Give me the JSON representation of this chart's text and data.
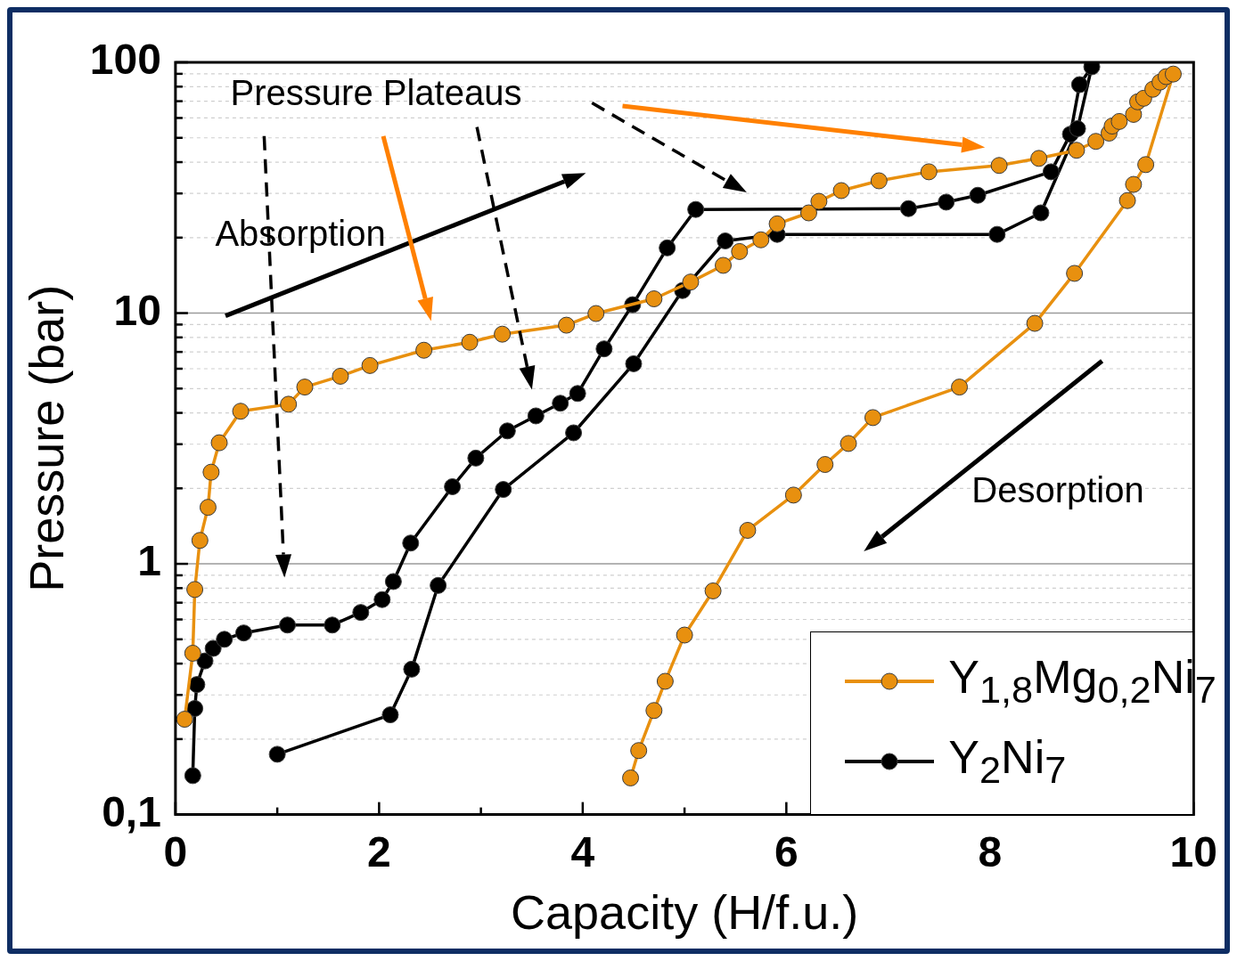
{
  "chart_data": {
    "type": "line",
    "xlabel": "Capacity (H/f.u.)",
    "ylabel": "Pressure (bar)",
    "xlim": [
      0,
      10
    ],
    "xticks": [
      0,
      {
        "value": 1,
        "label": null
      },
      2,
      {
        "value": 3,
        "label": null
      },
      4,
      {
        "value": 5,
        "label": null
      },
      6,
      {
        "value": 7,
        "label": null
      },
      8,
      {
        "value": 9,
        "label": null
      },
      10
    ],
    "ylim": [
      0.1,
      100
    ],
    "yticks": [
      {
        "value": 0.1,
        "label": "0,1"
      },
      {
        "value": 0.2,
        "label": null
      },
      {
        "value": 0.3,
        "label": null
      },
      {
        "value": 0.4,
        "label": null
      },
      {
        "value": 0.5,
        "label": null
      },
      {
        "value": 0.6,
        "label": null
      },
      {
        "value": 0.7,
        "label": null
      },
      {
        "value": 0.8,
        "label": null
      },
      {
        "value": 0.9,
        "label": null
      },
      1,
      {
        "value": 2,
        "label": null
      },
      {
        "value": 3,
        "label": null
      },
      {
        "value": 4,
        "label": null
      },
      {
        "value": 5,
        "label": null
      },
      {
        "value": 6,
        "label": null
      },
      {
        "value": 7,
        "label": null
      },
      {
        "value": 8,
        "label": null
      },
      {
        "value": 9,
        "label": null
      },
      10,
      {
        "value": 20,
        "label": null
      },
      {
        "value": 30,
        "label": null
      },
      {
        "value": 40,
        "label": null
      },
      {
        "value": 50,
        "label": null
      },
      {
        "value": 60,
        "label": null
      },
      {
        "value": 70,
        "label": null
      },
      {
        "value": 80,
        "label": null
      },
      {
        "value": 90,
        "label": null
      },
      100
    ],
    "log": "y",
    "grid": "y",
    "legend": "bottom right",
    "marker": "circle",
    "line_style": "solid",
    "annotations": [
      "Pressure Plateaus",
      "Absorption",
      "Desorption"
    ],
    "series": [
      {
        "name": "Y$_{1,8}$Mg$_{0,2}$Ni$_{7}$",
        "color": "#e8900f",
        "x": [
          0.09,
          0.17,
          0.19,
          0.24,
          0.32,
          0.35,
          0.43,
          0.64,
          1.11,
          1.27,
          1.62,
          1.91,
          2.44,
          2.89,
          3.21,
          3.84,
          4.13,
          4.7,
          5.06,
          5.38,
          5.54,
          5.75,
          5.91,
          6.22,
          6.32,
          6.54,
          6.91,
          7.4,
          8.09,
          8.48,
          8.85,
          9.04,
          9.17,
          9.2,
          9.27,
          9.41,
          9.45,
          9.51,
          9.6,
          9.67,
          9.73,
          9.8,
          9.53,
          9.41,
          9.35,
          8.83,
          8.44,
          7.7,
          6.85,
          6.61,
          6.38,
          6.07,
          5.62,
          5.28,
          5.0,
          4.81,
          4.7,
          4.55,
          4.47
        ],
        "values": [
          0.24,
          0.44,
          0.79,
          1.24,
          1.68,
          2.32,
          3.04,
          4.06,
          4.33,
          5.07,
          5.6,
          6.18,
          7.11,
          7.65,
          8.24,
          8.95,
          9.96,
          11.4,
          13.3,
          15.5,
          17.6,
          19.6,
          22.7,
          25.1,
          27.9,
          30.8,
          33.7,
          36.6,
          38.8,
          41.4,
          44.6,
          48.4,
          52.2,
          55.7,
          58.1,
          62,
          69.6,
          71.9,
          78.1,
          83.4,
          87.7,
          89.8,
          39.1,
          32.6,
          28.1,
          14.4,
          9.1,
          5.07,
          3.83,
          3.02,
          2.49,
          1.88,
          1.36,
          0.78,
          0.52,
          0.34,
          0.26,
          0.18,
          0.14
        ]
      },
      {
        "name": "Y$_{2}$Ni$_{7}$",
        "color": "#000000",
        "x": [
          0.17,
          0.19,
          0.21,
          0.29,
          0.37,
          0.48,
          0.67,
          1.1,
          1.54,
          1.82,
          2.03,
          2.14,
          2.31,
          2.72,
          2.95,
          3.26,
          3.54,
          3.78,
          3.95,
          4.21,
          4.49,
          4.83,
          5.11,
          7.2,
          7.57,
          7.88,
          8.6,
          8.79,
          8.88,
          9.0,
          8.86,
          8.5,
          8.07,
          5.91,
          5.4,
          4.98,
          4.5,
          3.91,
          3.22,
          2.58,
          2.32,
          2.11,
          1.0
        ],
        "values": [
          0.143,
          0.265,
          0.33,
          0.41,
          0.46,
          0.5,
          0.53,
          0.57,
          0.57,
          0.64,
          0.72,
          0.85,
          1.21,
          2.03,
          2.64,
          3.39,
          3.89,
          4.37,
          4.78,
          7.2,
          10.8,
          18.2,
          25.9,
          26.1,
          27.7,
          29.5,
          36.6,
          51.7,
          81.5,
          96,
          54.4,
          25.1,
          20.6,
          20.6,
          19.4,
          12.3,
          6.28,
          3.33,
          1.98,
          0.82,
          0.38,
          0.25,
          0.174
        ]
      }
    ]
  }
}
